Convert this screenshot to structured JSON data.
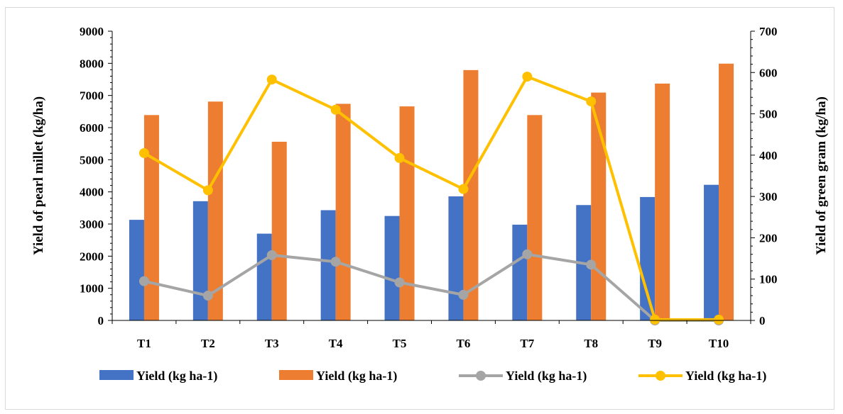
{
  "chart_data": {
    "type": "bar",
    "categories": [
      "T1",
      "T2",
      "T3",
      "T4",
      "T5",
      "T6",
      "T7",
      "T8",
      "T9",
      "T10"
    ],
    "ylabel": "Yield of pearl millet (kg/ha)",
    "y2label": "Yield of green gram (kg/ha)",
    "ylim": [
      0,
      9000
    ],
    "y2lim": [
      0,
      700
    ],
    "yticks": [
      0,
      1000,
      2000,
      3000,
      4000,
      5000,
      6000,
      7000,
      8000,
      9000
    ],
    "y2ticks": [
      0,
      100,
      200,
      300,
      400,
      500,
      600,
      700
    ],
    "grid": false,
    "legend_position": "bottom",
    "series": [
      {
        "name": "Yield (kg ha-1)",
        "kind": "bar",
        "axis": "left",
        "color": "#4472C4",
        "values": [
          3130,
          3710,
          2700,
          3430,
          3250,
          3860,
          2980,
          3590,
          3840,
          4220
        ]
      },
      {
        "name": "Yield (kg ha-1)",
        "kind": "bar",
        "axis": "left",
        "color": "#ED7D31",
        "values": [
          6390,
          6810,
          5560,
          6740,
          6660,
          7790,
          6390,
          7090,
          7370,
          7990
        ]
      },
      {
        "name": "Yield (kg ha-1)",
        "kind": "line",
        "axis": "right",
        "color": "#A5A5A5",
        "values": [
          95,
          60,
          158,
          142,
          92,
          62,
          160,
          135,
          0,
          0
        ]
      },
      {
        "name": "Yield (kg ha-1)",
        "kind": "line",
        "axis": "right",
        "color": "#FFC000",
        "values": [
          405,
          315,
          583,
          510,
          393,
          318,
          590,
          530,
          2,
          2
        ]
      }
    ]
  }
}
